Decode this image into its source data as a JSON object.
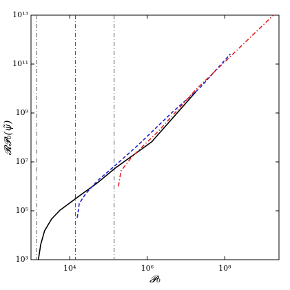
{
  "chart_data": {
    "type": "line",
    "log_x": true,
    "log_y": true,
    "x_label": "𝓟₀",
    "y_label": "𝓡𝓟₀(ψ̃)",
    "xlim": [
      1000,
      2500000000
    ],
    "ylim": [
      1000,
      10000000000000
    ],
    "xticks": [
      {
        "value": 10000,
        "label": "10⁴"
      },
      {
        "value": 1000000,
        "label": "10⁶"
      },
      {
        "value": 100000000,
        "label": "10⁸"
      }
    ],
    "yticks": [
      {
        "value": 1000,
        "label": "10³"
      },
      {
        "value": 100000,
        "label": "10⁵"
      },
      {
        "value": 10000000,
        "label": "10⁷"
      },
      {
        "value": 1000000000,
        "label": "10⁹"
      },
      {
        "value": 100000000000,
        "label": "10¹¹"
      },
      {
        "value": 10000000000000,
        "label": "10¹³"
      }
    ],
    "vlines": [
      1400,
      14000,
      140000
    ],
    "series": [
      {
        "color": "#000000",
        "style": "solid",
        "x": [
          1550,
          1780,
          2240,
          3380,
          5650,
          14400,
          52000,
          150000,
          1300000,
          18000000
        ],
        "values": [
          1000,
          4170,
          15200,
          45700,
          107000,
          320000,
          1400000,
          5600000,
          66000000,
          7400000000
        ]
      },
      {
        "color": "#1f1fd0",
        "style": "dashed",
        "x": [
          15600,
          17600,
          25300,
          52000,
          150000,
          590000,
          4500000,
          22000000,
          140000000
        ],
        "values": [
          52000,
          200000,
          480000,
          1700000,
          7200000,
          50000000,
          1100000000,
          10000000000,
          260000000000
        ]
      },
      {
        "color": "#e02020",
        "style": "dashdot",
        "x": [
          180000,
          210000,
          400000,
          2000000,
          18000000,
          1800000000
        ],
        "values": [
          1000000,
          4300000,
          16000000,
          190000000,
          9100000000,
          10000000000000
        ]
      }
    ]
  }
}
